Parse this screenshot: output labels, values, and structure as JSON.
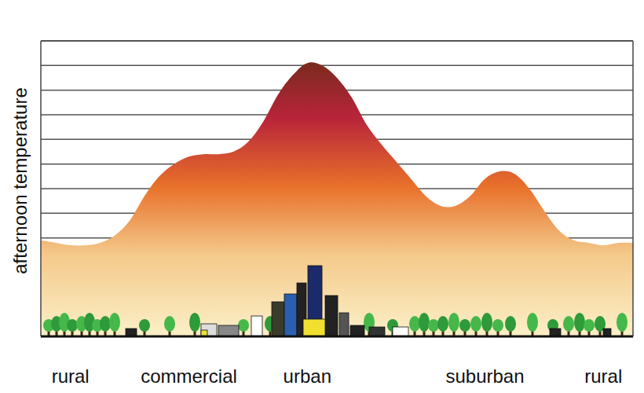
{
  "chart_data": {
    "type": "area",
    "y_label": "afternoon temperature",
    "categories": [
      null,
      null,
      "rural",
      null,
      null,
      null,
      null,
      null,
      null,
      null,
      "commercial",
      null,
      null,
      null,
      null,
      null,
      null,
      null,
      "urban",
      null,
      null,
      null,
      null,
      null,
      null,
      null,
      null,
      null,
      null,
      null,
      "suburban",
      null,
      null,
      null,
      null,
      null,
      null,
      null,
      "rural",
      null,
      null
    ],
    "values": [
      3.9,
      3.8,
      3.7,
      3.7,
      3.8,
      4.1,
      4.7,
      5.7,
      6.5,
      7.0,
      7.3,
      7.4,
      7.4,
      7.5,
      7.9,
      8.7,
      9.8,
      10.6,
      11.1,
      11.0,
      10.5,
      9.7,
      8.6,
      7.8,
      7.1,
      6.4,
      5.7,
      5.3,
      5.3,
      5.7,
      6.4,
      6.7,
      6.6,
      6.0,
      5.1,
      4.3,
      3.9,
      3.8,
      3.7,
      3.8,
      3.8
    ],
    "color": "#e8702a",
    "ylim": [
      0,
      12
    ],
    "yticks": [
      4,
      5,
      6,
      7,
      8,
      9,
      10,
      11,
      12
    ],
    "grid": true,
    "tick_labels": false
  }
}
